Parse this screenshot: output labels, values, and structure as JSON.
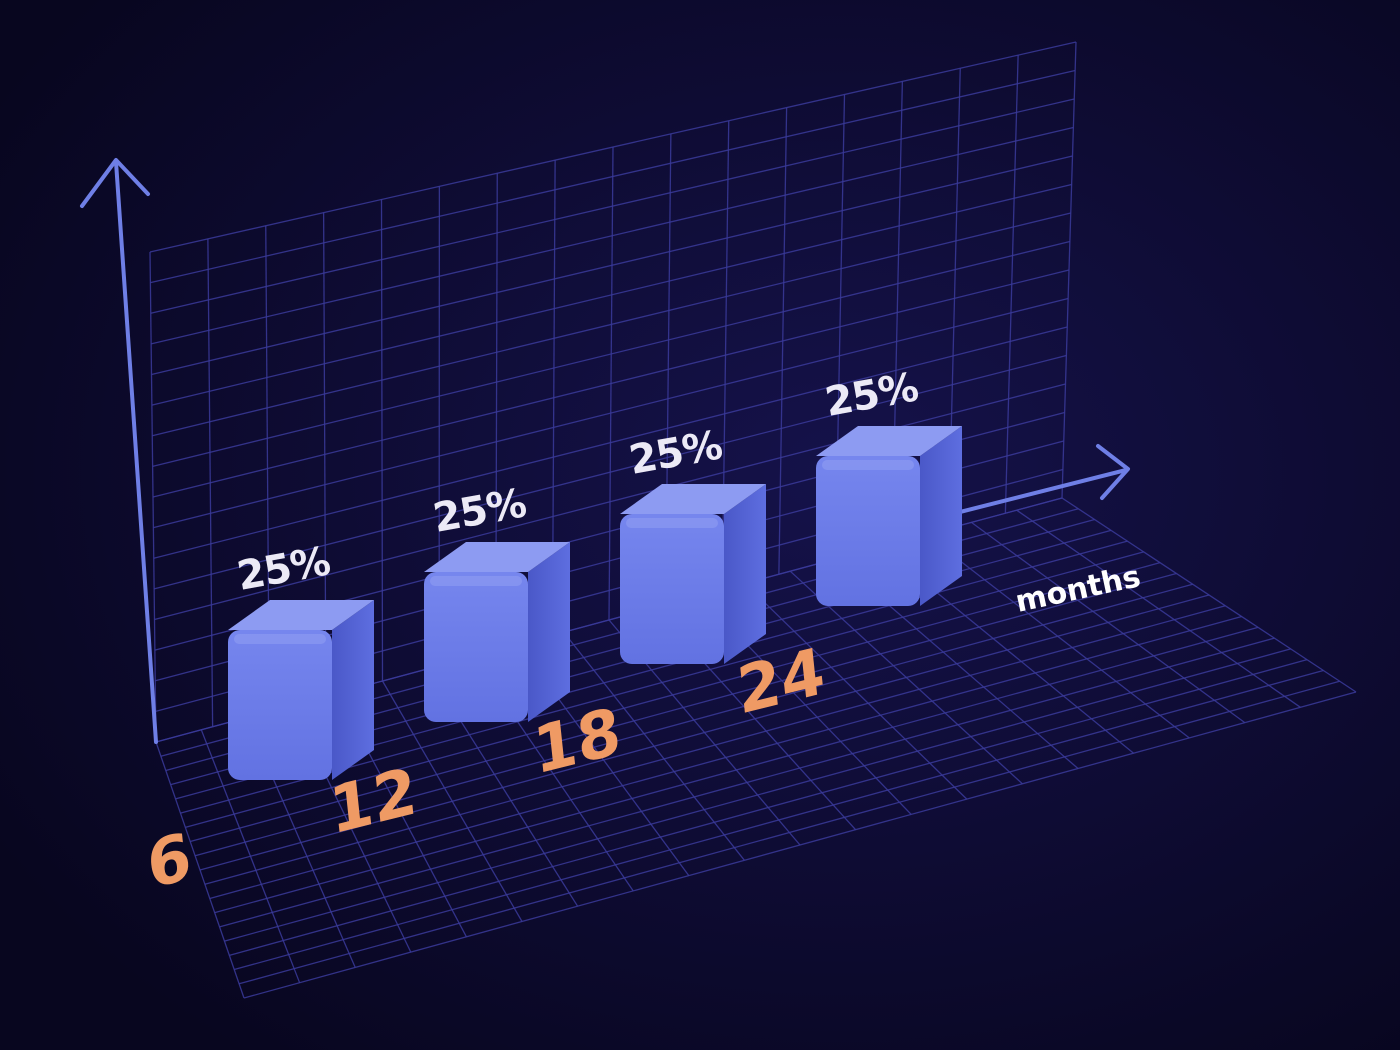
{
  "chart_data": {
    "type": "bar",
    "categories": [
      "6",
      "12",
      "18",
      "24"
    ],
    "values": [
      25,
      25,
      25,
      25
    ],
    "value_labels": [
      "25%",
      "25%",
      "25%",
      "25%"
    ],
    "xlabel": "months",
    "ylabel": "",
    "title": "",
    "grid": true,
    "legend": "none"
  },
  "colors": {
    "background": "#0a0828",
    "grid_line": "#3a3a9a",
    "axis": "#6f7fe6",
    "bar_front": "#6c7ce8",
    "bar_side": "#5566d6",
    "bar_top": "#8d9bf2",
    "value_text": "#eceaf6",
    "category_text": "#ef9a64",
    "unit_text": "#ffffff"
  }
}
